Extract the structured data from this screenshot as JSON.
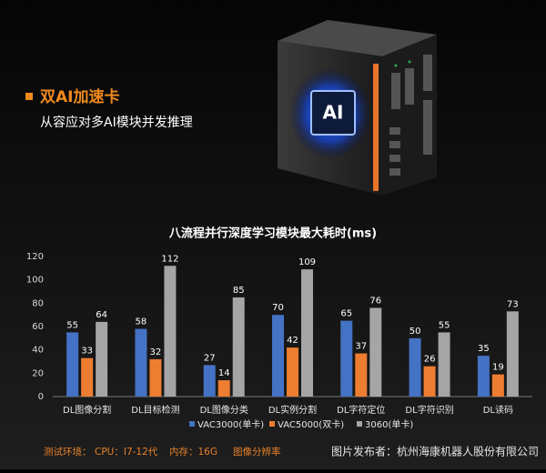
{
  "header": {
    "title": "双AI加速卡",
    "subtitle": "从容应对多AI模块并发推理",
    "chip_label": "AI"
  },
  "chart_data": {
    "type": "bar",
    "title": "八流程并行深度学习模块最大耗时(ms)",
    "categories": [
      "DL图像分割",
      "DL目标检测",
      "DL图像分类",
      "DL实例分割",
      "DL字符定位",
      "DL字符识别",
      "DL读码"
    ],
    "series": [
      {
        "name": "VAC3000(单卡)",
        "color": "#4472c4",
        "values": [
          55,
          58,
          27,
          70,
          65,
          50,
          35
        ]
      },
      {
        "name": "VAC5000(双卡)",
        "color": "#ed7d31",
        "values": [
          33,
          32,
          14,
          42,
          37,
          26,
          19
        ]
      },
      {
        "name": "3060(单卡)",
        "color": "#a5a5a5",
        "values": [
          64,
          112,
          85,
          109,
          76,
          55,
          73
        ]
      }
    ],
    "ylim": [
      0,
      120
    ],
    "yticks": [
      0,
      20,
      40,
      60,
      80,
      100,
      120
    ],
    "grid": false,
    "legend": "bottom"
  },
  "footer": {
    "label": "测试环境：",
    "cpu": "CPU：I7-12代",
    "memory": "内存：16G",
    "resolution": "图像分辨率",
    "watermark": "图片发布者：杭州海康机器人股份有限公司"
  }
}
